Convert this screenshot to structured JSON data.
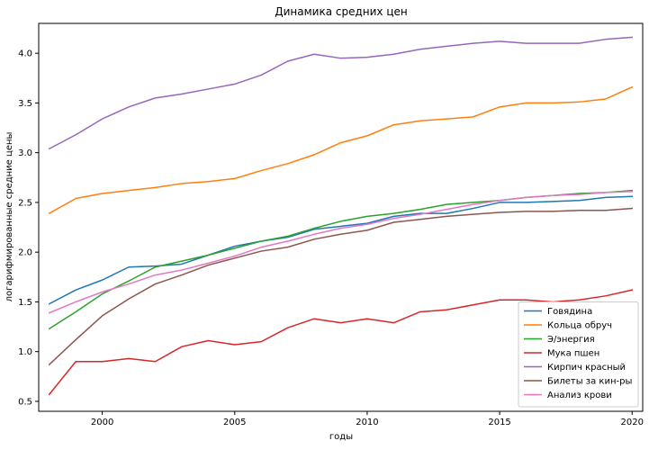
{
  "chart_data": {
    "type": "line",
    "title": "Динамика средних цен",
    "xlabel": "годы",
    "ylabel": "логарифмированные средние цены",
    "xlim": [
      1997.6,
      2020.4
    ],
    "ylim": [
      0.4,
      4.3
    ],
    "x_ticks": [
      2000,
      2005,
      2010,
      2015,
      2020
    ],
    "y_ticks": [
      0.5,
      1.0,
      1.5,
      2.0,
      2.5,
      3.0,
      3.5,
      4.0
    ],
    "grid": false,
    "legend_position": "lower-right",
    "x": [
      1998,
      1999,
      2000,
      2001,
      2002,
      2003,
      2004,
      2005,
      2006,
      2007,
      2008,
      2009,
      2010,
      2011,
      2012,
      2013,
      2014,
      2015,
      2016,
      2017,
      2018,
      2019,
      2020
    ],
    "series": [
      {
        "name": "Говядина",
        "color": "#1f77b4",
        "values": [
          1.48,
          1.62,
          1.72,
          1.85,
          1.86,
          1.88,
          1.97,
          2.06,
          2.11,
          2.15,
          2.23,
          2.26,
          2.29,
          2.36,
          2.39,
          2.39,
          2.44,
          2.5,
          2.5,
          2.51,
          2.52,
          2.55,
          2.56
        ]
      },
      {
        "name": "Кольца обруч",
        "color": "#ff7f0e",
        "values": [
          2.39,
          2.54,
          2.59,
          2.62,
          2.65,
          2.69,
          2.71,
          2.74,
          2.82,
          2.89,
          2.98,
          3.1,
          3.17,
          3.28,
          3.32,
          3.34,
          3.36,
          3.46,
          3.5,
          3.5,
          3.51,
          3.54,
          3.66
        ]
      },
      {
        "name": "Э/энергия",
        "color": "#2ca02c",
        "values": [
          1.23,
          1.4,
          1.58,
          1.71,
          1.85,
          1.91,
          1.97,
          2.04,
          2.11,
          2.16,
          2.24,
          2.31,
          2.36,
          2.39,
          2.43,
          2.48,
          2.5,
          2.52,
          2.55,
          2.57,
          2.59,
          2.6,
          2.62
        ]
      },
      {
        "name": "Мука пшен",
        "color": "#d62728",
        "values": [
          0.57,
          0.9,
          0.9,
          0.93,
          0.9,
          1.05,
          1.11,
          1.07,
          1.1,
          1.24,
          1.33,
          1.29,
          1.33,
          1.29,
          1.4,
          1.42,
          1.47,
          1.52,
          1.52,
          1.5,
          1.52,
          1.56,
          1.62
        ]
      },
      {
        "name": "Кирпич красный",
        "color": "#9467bd",
        "values": [
          3.04,
          3.18,
          3.34,
          3.46,
          3.55,
          3.59,
          3.64,
          3.69,
          3.78,
          3.92,
          3.99,
          3.95,
          3.96,
          3.99,
          4.04,
          4.07,
          4.1,
          4.12,
          4.1,
          4.1,
          4.1,
          4.14,
          4.16
        ]
      },
      {
        "name": "Билеты за кин-ры",
        "color": "#8c564b",
        "values": [
          0.87,
          1.12,
          1.36,
          1.53,
          1.68,
          1.77,
          1.87,
          1.94,
          2.01,
          2.05,
          2.13,
          2.18,
          2.22,
          2.3,
          2.33,
          2.36,
          2.38,
          2.4,
          2.41,
          2.41,
          2.42,
          2.42,
          2.44
        ]
      },
      {
        "name": "Анализ крови",
        "color": "#e377c2",
        "values": [
          1.39,
          1.5,
          1.6,
          1.68,
          1.77,
          1.82,
          1.89,
          1.96,
          2.05,
          2.11,
          2.18,
          2.24,
          2.28,
          2.34,
          2.38,
          2.43,
          2.48,
          2.52,
          2.55,
          2.57,
          2.58,
          2.6,
          2.61
        ]
      }
    ]
  }
}
